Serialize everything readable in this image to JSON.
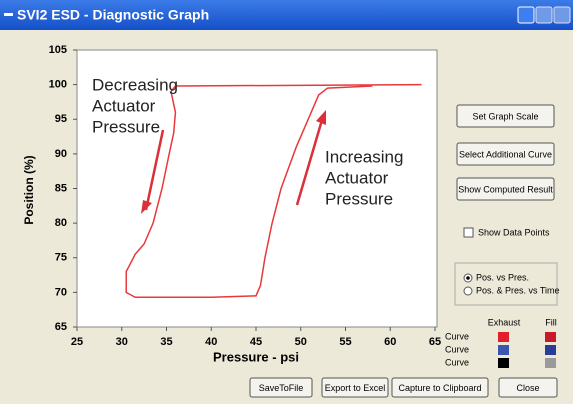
{
  "window": {
    "title": "SVI2 ESD  - Diagnostic Graph"
  },
  "chart_data": {
    "type": "line",
    "xlabel": "Pressure - psi",
    "ylabel": "Position (%)",
    "xlim": [
      25,
      65
    ],
    "ylim": [
      65,
      105
    ],
    "xticks": [
      25,
      30,
      35,
      40,
      45,
      50,
      55,
      60,
      65
    ],
    "yticks": [
      65,
      70,
      75,
      80,
      85,
      90,
      95,
      100,
      105
    ],
    "x": [
      63.5,
      36,
      35.5,
      36,
      35.8,
      35.3,
      34.5,
      33.5,
      32.5,
      31.5,
      30.5,
      30.5,
      31.5,
      40,
      45,
      45.5,
      46,
      46.8,
      47.8,
      49.5,
      51,
      52,
      53,
      58
    ],
    "series": [
      {
        "color": "#e8383a",
        "values": [
          100,
          99.8,
          99,
          96,
          93,
          90,
          85,
          80,
          77,
          75.5,
          73,
          70,
          69.3,
          69.3,
          69.5,
          71,
          75,
          80,
          85,
          91,
          95.5,
          98.5,
          99.5,
          99.8
        ]
      }
    ],
    "annotations": [
      {
        "lines": [
          "Decreasing",
          "Actuator",
          "Pressure"
        ]
      },
      {
        "lines": [
          "Increasing",
          "Actuator",
          "Pressure"
        ]
      }
    ]
  },
  "buttons": [
    "Set Graph Scale",
    "Select Additional Curve",
    "Show Computed Result"
  ],
  "checkbox": "Show Data Points",
  "radios": [
    "Pos. vs Pres.",
    "Pos. & Pres. vs Time"
  ],
  "legend": {
    "headers": [
      "Exhaust",
      "Fill"
    ],
    "rows": [
      {
        "label": "Curve",
        "colors": [
          "#e0202a",
          "#c8182a"
        ]
      },
      {
        "label": "Curve",
        "colors": [
          "#3a56b0",
          "#283c98"
        ]
      },
      {
        "label": "Curve",
        "colors": [
          "#000000",
          "#9a9a9a"
        ]
      }
    ]
  },
  "bottom_buttons": [
    "SaveToFile",
    "Export to Excel",
    "Capture to Clipboard",
    "Close"
  ]
}
